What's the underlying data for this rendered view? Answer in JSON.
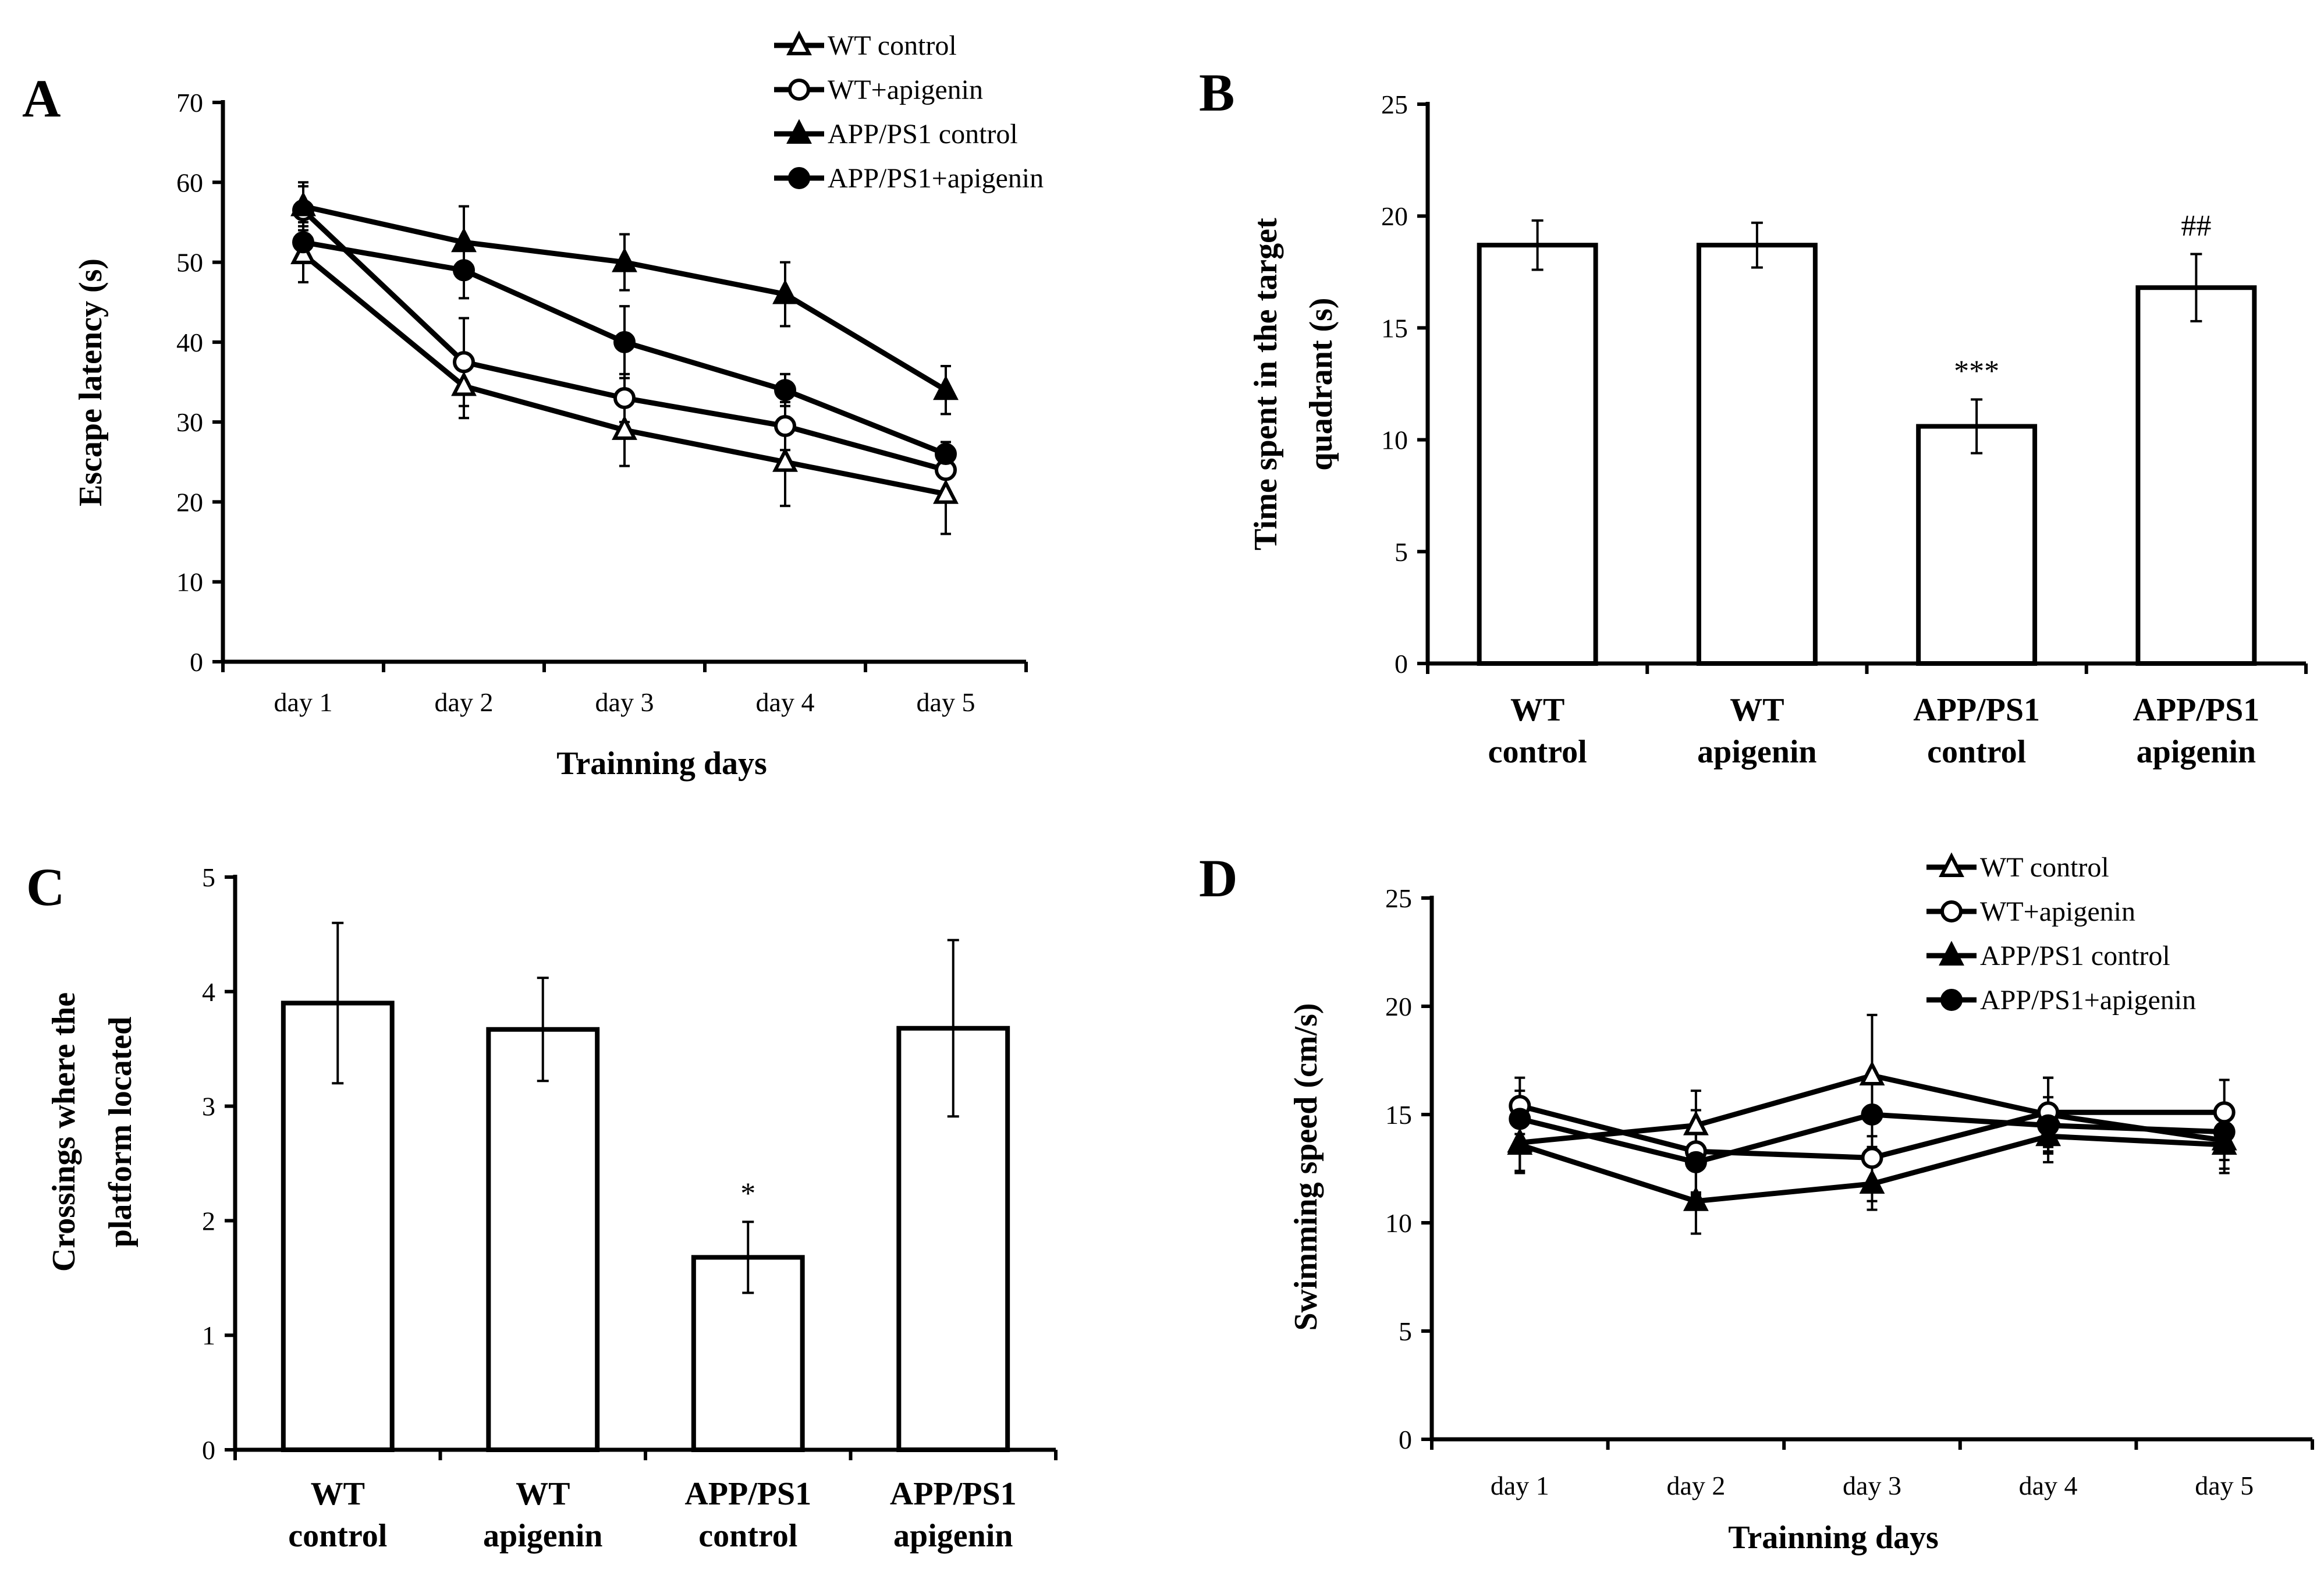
{
  "chart_data": [
    {
      "panel": "A",
      "type": "line",
      "xlabel": "Trainning days",
      "ylabel": "Escape latency (s)",
      "ylim": [
        0,
        70
      ],
      "yticks": [
        0,
        10,
        20,
        30,
        40,
        50,
        60,
        70
      ],
      "categories": [
        "day 1",
        "day 2",
        "day 3",
        "day 4",
        "day 5"
      ],
      "legend_position": "top-right",
      "series": [
        {
          "name": "WT control",
          "marker": "triangle-open",
          "values": [
            51,
            34.5,
            29,
            25,
            21
          ],
          "errors": [
            3.5,
            4,
            4.5,
            5.5,
            5
          ]
        },
        {
          "name": "WT+apigenin",
          "marker": "circle-open",
          "values": [
            56.5,
            37.5,
            33,
            29.5,
            24
          ],
          "errors": [
            3,
            5.5,
            3,
            3,
            3
          ]
        },
        {
          "name": "APP/PS1 control",
          "marker": "triangle-filled",
          "values": [
            57,
            52.5,
            50,
            46,
            34
          ],
          "errors": [
            3,
            4.5,
            3.5,
            4,
            3
          ]
        },
        {
          "name": "APP/PS1+apigenin",
          "marker": "circle-filled",
          "values": [
            52.5,
            49,
            40,
            34,
            26
          ],
          "errors": [
            2.5,
            3.5,
            4.5,
            2,
            1.5
          ]
        }
      ]
    },
    {
      "panel": "B",
      "type": "bar",
      "xlabel": "",
      "ylabel": [
        "Time spent in the target",
        "quadrant (s)"
      ],
      "ylim": [
        0,
        25
      ],
      "yticks": [
        0,
        5,
        10,
        15,
        20,
        25
      ],
      "categories": [
        [
          "WT",
          "control"
        ],
        [
          "WT",
          "apigenin"
        ],
        [
          "APP/PS1",
          "control"
        ],
        [
          "APP/PS1",
          "apigenin"
        ]
      ],
      "values": [
        18.7,
        18.7,
        10.6,
        16.8
      ],
      "errors": [
        1.1,
        1.0,
        1.2,
        1.5
      ],
      "annotations": [
        "",
        "",
        "***",
        "##"
      ]
    },
    {
      "panel": "C",
      "type": "bar",
      "xlabel": "",
      "ylabel": [
        "Crossings where the",
        "platform located"
      ],
      "ylim": [
        0,
        5
      ],
      "yticks": [
        0,
        1,
        2,
        3,
        4,
        5
      ],
      "categories": [
        [
          "WT",
          "control"
        ],
        [
          "WT",
          "apigenin"
        ],
        [
          "APP/PS1",
          "control"
        ],
        [
          "APP/PS1",
          "apigenin"
        ]
      ],
      "values": [
        3.9,
        3.67,
        1.68,
        3.68
      ],
      "errors": [
        0.7,
        0.45,
        0.31,
        0.77
      ],
      "annotations": [
        "",
        "",
        "*",
        ""
      ]
    },
    {
      "panel": "D",
      "type": "line",
      "xlabel": "Trainning days",
      "ylabel": "Swimming speed (cm/s)",
      "ylim": [
        0,
        25
      ],
      "yticks": [
        0,
        5,
        10,
        15,
        20,
        25
      ],
      "categories": [
        "day 1",
        "day 2",
        "day 3",
        "day 4",
        "day 5"
      ],
      "legend_position": "top-right",
      "series": [
        {
          "name": "WT control",
          "marker": "triangle-open",
          "values": [
            13.7,
            14.5,
            16.8,
            15.0,
            13.8
          ],
          "errors": [
            1.3,
            1.6,
            2.8,
            1.7,
            1.3
          ]
        },
        {
          "name": "WT+apigenin",
          "marker": "circle-open",
          "values": [
            15.4,
            13.3,
            13.0,
            15.1,
            15.1
          ],
          "errors": [
            1.3,
            1.9,
            2.0,
            1.6,
            1.5
          ]
        },
        {
          "name": "APP/PS1 control",
          "marker": "triangle-filled",
          "values": [
            13.6,
            11.0,
            11.8,
            14.0,
            13.6
          ],
          "errors": [
            1.3,
            1.5,
            1.2,
            1.2,
            1.3
          ]
        },
        {
          "name": "APP/PS1+apigenin",
          "marker": "circle-filled",
          "values": [
            14.8,
            12.8,
            15.0,
            14.5,
            14.2
          ],
          "errors": [
            1.3,
            1.5,
            1.5,
            1.3,
            1.3
          ]
        }
      ]
    }
  ]
}
